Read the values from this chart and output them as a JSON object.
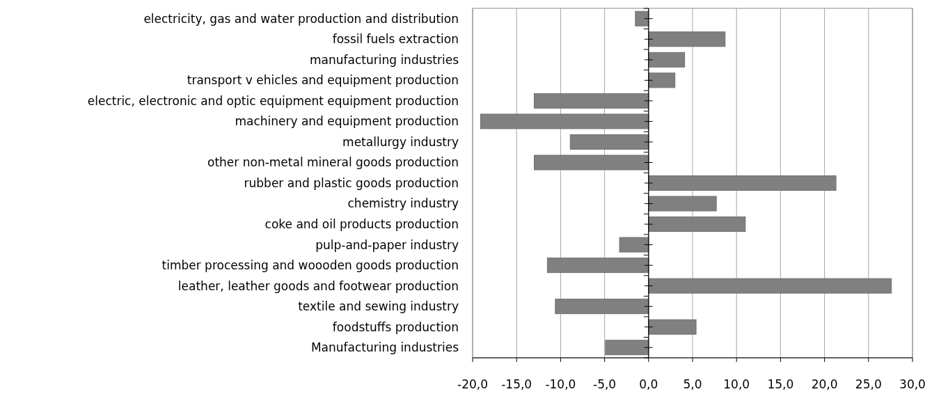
{
  "chart_data": {
    "type": "bar",
    "orientation": "horizontal",
    "categories": [
      "electricity, gas and water production and distribution",
      "fossil fuels extraction",
      "manufacturing industries",
      "transport v ehicles and equipment production",
      "electric, electronic and optic equipment equipment production",
      "machinery and equipment production",
      "metallurgy industry",
      "other non-metal mineral goods production",
      "rubber and plastic goods production",
      "chemistry industry",
      "coke and oil products production",
      "pulp-and-paper industry",
      "timber processing and woooden goods production",
      "leather, leather goods and footwear production",
      "textile and sewing industry",
      "foodstuffs production",
      "Manufacturing industries"
    ],
    "values": [
      -1.5,
      8.7,
      4.1,
      3.0,
      -13.0,
      -19.1,
      -8.9,
      -13.0,
      21.3,
      7.7,
      11.0,
      -3.3,
      -11.5,
      27.6,
      -10.6,
      5.4,
      -4.9
    ],
    "color": "#808080",
    "xlim": [
      -20,
      30
    ],
    "xticks": [
      {
        "value": -20,
        "label": "-20,0"
      },
      {
        "value": -15,
        "label": "-15,0"
      },
      {
        "value": -10,
        "label": "-10,0"
      },
      {
        "value": -5,
        "label": "-5,0"
      },
      {
        "value": 0,
        "label": "0,0"
      },
      {
        "value": 5,
        "label": "5,0"
      },
      {
        "value": 10,
        "label": "10,0"
      },
      {
        "value": 15,
        "label": "15,0"
      },
      {
        "value": 20,
        "label": "20,0"
      },
      {
        "value": 25,
        "label": "25,0"
      },
      {
        "value": 30,
        "label": "30,0"
      }
    ],
    "grid": "x"
  }
}
